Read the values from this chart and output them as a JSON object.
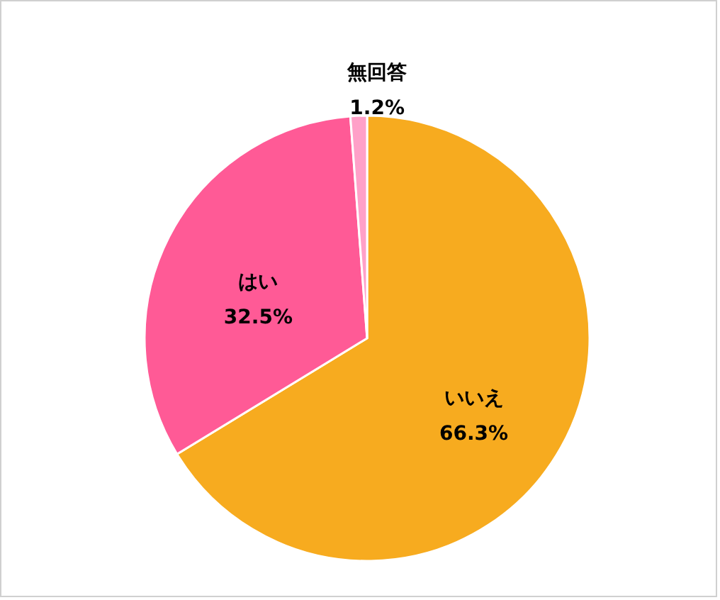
{
  "chart_data": {
    "type": "pie",
    "categories": [
      "いいえ",
      "はい",
      "無回答"
    ],
    "values": [
      66.3,
      32.5,
      1.2
    ],
    "colors": [
      "#f7ab1f",
      "#ff5a96",
      "#ffa0c8"
    ],
    "value_labels": [
      "66.3%",
      "32.5%",
      "1.2%"
    ],
    "legend": false
  }
}
